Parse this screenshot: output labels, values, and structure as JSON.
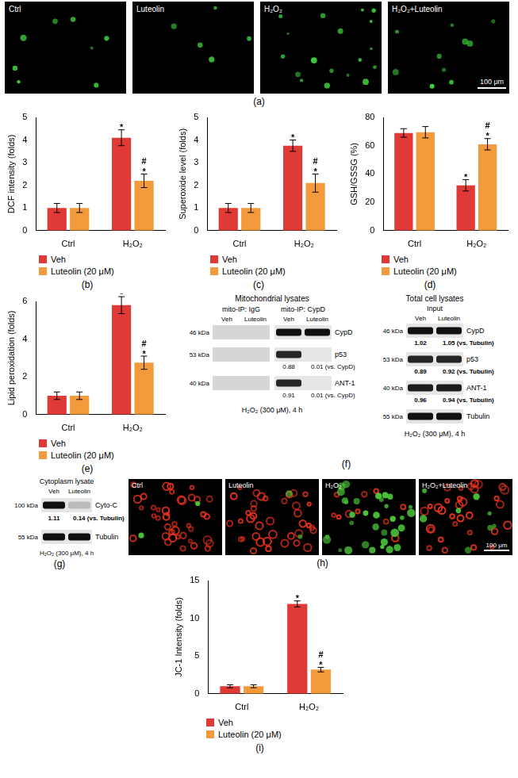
{
  "chart_data": [
    {
      "panel": "(b)",
      "type": "bar",
      "y_label": "DCF intensity (folds)",
      "categories": [
        "Ctrl",
        "H₂O₂"
      ],
      "series": [
        {
          "name": "Veh",
          "color": "#e03a36",
          "values": [
            1.0,
            4.1
          ],
          "errors": [
            0.2,
            0.35
          ],
          "marks": [
            [],
            [
              "*"
            ]
          ]
        },
        {
          "name": "Luteolin (20 μM)",
          "color": "#f39a3c",
          "values": [
            1.0,
            2.2
          ],
          "errors": [
            0.2,
            0.3
          ],
          "marks": [
            [],
            [
              "#",
              "*"
            ]
          ]
        }
      ],
      "ylim": [
        0,
        5
      ],
      "yticks": [
        0,
        1,
        2,
        3,
        4,
        5
      ],
      "grid": false
    },
    {
      "panel": "(c)",
      "type": "bar",
      "y_label": "Superoxide level (folds)",
      "categories": [
        "Ctrl",
        "H₂O₂"
      ],
      "series": [
        {
          "name": "Veh",
          "color": "#e03a36",
          "values": [
            1.0,
            3.75
          ],
          "errors": [
            0.2,
            0.25
          ],
          "marks": [
            [],
            [
              "*"
            ]
          ]
        },
        {
          "name": "Luteolin (20 μM)",
          "color": "#f39a3c",
          "values": [
            1.0,
            2.1
          ],
          "errors": [
            0.2,
            0.4
          ],
          "marks": [
            [],
            [
              "#",
              "*"
            ]
          ]
        }
      ],
      "ylim": [
        0,
        5
      ],
      "yticks": [
        0,
        1,
        2,
        3,
        4,
        5
      ],
      "grid": false
    },
    {
      "panel": "(d)",
      "type": "bar",
      "y_label": "GSH/GSSG (%)",
      "categories": [
        "Ctrl",
        "H₂O₂"
      ],
      "series": [
        {
          "name": "Veh",
          "color": "#e03a36",
          "values": [
            69,
            32
          ],
          "errors": [
            3,
            4
          ],
          "marks": [
            [],
            [
              "*"
            ]
          ]
        },
        {
          "name": "Luteolin (20 μM)",
          "color": "#f39a3c",
          "values": [
            69.5,
            61
          ],
          "errors": [
            4,
            4
          ],
          "marks": [
            [],
            [
              "#",
              "*"
            ]
          ]
        }
      ],
      "ylim": [
        0,
        80
      ],
      "yticks": [
        0,
        20,
        40,
        60,
        80
      ],
      "grid": false
    },
    {
      "panel": "(e)",
      "type": "bar",
      "y_label": "Lipid peroxidation (folds)",
      "categories": [
        "Ctrl",
        "H₂O₂"
      ],
      "series": [
        {
          "name": "Veh",
          "color": "#e03a36",
          "values": [
            1.0,
            5.8
          ],
          "errors": [
            0.2,
            0.45
          ],
          "marks": [
            [],
            [
              "*"
            ]
          ]
        },
        {
          "name": "Luteolin (20 μM)",
          "color": "#f39a3c",
          "values": [
            1.0,
            2.75
          ],
          "errors": [
            0.2,
            0.35
          ],
          "marks": [
            [],
            [
              "#",
              "*"
            ]
          ]
        }
      ],
      "ylim": [
        0,
        6
      ],
      "yticks": [
        0,
        2,
        4,
        6
      ],
      "grid": false
    },
    {
      "panel": "(i)",
      "type": "bar",
      "y_label": "JC-1 Intensity (folds)",
      "categories": [
        "Ctrl",
        "H₂O₂"
      ],
      "series": [
        {
          "name": "Veh",
          "color": "#e03a36",
          "values": [
            1.0,
            11.9
          ],
          "errors": [
            0.2,
            0.4
          ],
          "marks": [
            [],
            [
              "*"
            ]
          ]
        },
        {
          "name": "Luteolin (20 μM)",
          "color": "#f39a3c",
          "values": [
            1.0,
            3.2
          ],
          "errors": [
            0.2,
            0.3
          ],
          "marks": [
            [],
            [
              "#",
              "*"
            ]
          ]
        }
      ],
      "ylim": [
        0,
        15
      ],
      "yticks": [
        0,
        5,
        10,
        15
      ],
      "grid": false
    }
  ],
  "images_a": {
    "panel": "(a)",
    "scale_bar": "100 μm",
    "images": [
      {
        "label": "Ctrl",
        "spots": 8
      },
      {
        "label": "Luteolin",
        "spots": 5
      },
      {
        "label": "H₂O₂",
        "spots": 18
      },
      {
        "label": "H₂O₂+Luteolin",
        "spots": 10
      }
    ]
  },
  "blot_f": {
    "panel": "(f)",
    "title": "Mitochondrial lysates",
    "caption": "H₂O₂ (300 μM), 4 h",
    "blocks": [
      {
        "header": "mito-IP: IgG",
        "lanes": [
          "Veh",
          "Luteolin"
        ]
      },
      {
        "header": "mito-IP: CypD",
        "lanes": [
          "Veh",
          "Luteolin"
        ]
      }
    ],
    "rows": [
      {
        "kda": "46 kDa",
        "protein": "CypD",
        "bands": [
          [
            0,
            0
          ],
          [
            1,
            1
          ]
        ]
      },
      {
        "kda": "53 kDa",
        "protein": "p53",
        "bands": [
          [
            0,
            0
          ],
          [
            0.9,
            0
          ]
        ],
        "ratios": [
          "0.88",
          "0.01 (vs. CypD)"
        ]
      },
      {
        "kda": "40 kDa",
        "protein": "ANT-1",
        "bands": [
          [
            0,
            0
          ],
          [
            0.9,
            0
          ]
        ],
        "ratios": [
          "0.91",
          "0.01 (vs. CypD)"
        ]
      }
    ],
    "input": {
      "title": "Total cell lysates",
      "header": "Input",
      "lanes": [
        "Veh",
        "Luteolin"
      ],
      "caption": "H₂O₂ (300 μM), 4 h",
      "rows": [
        {
          "kda": "46 kDa",
          "protein": "CypD",
          "bands": [
            1,
            1
          ],
          "ratios": [
            "1.02",
            "1.05 (vs. Tubulin)"
          ]
        },
        {
          "kda": "53 kDa",
          "protein": "p53",
          "bands": [
            0.9,
            0.9
          ],
          "ratios": [
            "0.89",
            "0.92 (vs. Tubulin)"
          ]
        },
        {
          "kda": "40 kDa",
          "protein": "ANT-1",
          "bands": [
            0.95,
            0.95
          ],
          "ratios": [
            "0.96",
            "0.94 (vs. Tubulin)"
          ]
        },
        {
          "kda": "55 kDa",
          "protein": "Tubulin",
          "bands": [
            1,
            1
          ]
        }
      ]
    }
  },
  "blot_g": {
    "panel": "(g)",
    "title": "Cytoplasm lysate",
    "lanes": [
      "Veh",
      "Luteolin"
    ],
    "caption": "H₂O₂ (300 μM), 4 h",
    "rows": [
      {
        "kda": "100 kDa",
        "protein": "Cyto-C",
        "bands": [
          1,
          0.2
        ],
        "ratios": [
          "1.11",
          "0.14 (vs. Tubulin)"
        ]
      },
      {
        "kda": "55 kDa",
        "protein": "Tubulin",
        "bands": [
          1,
          1
        ]
      }
    ]
  },
  "images_h": {
    "panel": "(h)",
    "scale_bar": "100 μm",
    "images": [
      {
        "label": "Ctrl",
        "red": 40,
        "green": 2
      },
      {
        "label": "Luteolin",
        "red": 38,
        "green": 2
      },
      {
        "label": "H₂O₂",
        "red": 10,
        "green": 34
      },
      {
        "label": "H₂O₂+Luteolin",
        "red": 32,
        "green": 8
      }
    ]
  }
}
